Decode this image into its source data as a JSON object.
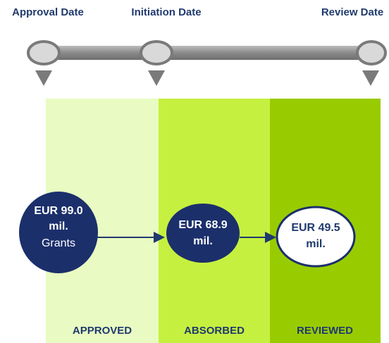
{
  "timeline": {
    "milestones": [
      "Approval Date",
      "Initiation Date",
      "Review Date"
    ]
  },
  "stages": [
    "APPROVED",
    "ABSORBED",
    "REVIEWED"
  ],
  "amounts": [
    {
      "lines": [
        "EUR 99.0",
        "mil."
      ],
      "note": "Grants"
    },
    {
      "lines": [
        "EUR 68.9",
        "mil."
      ]
    },
    {
      "lines": [
        "EUR 49.5",
        "mil."
      ]
    }
  ]
}
